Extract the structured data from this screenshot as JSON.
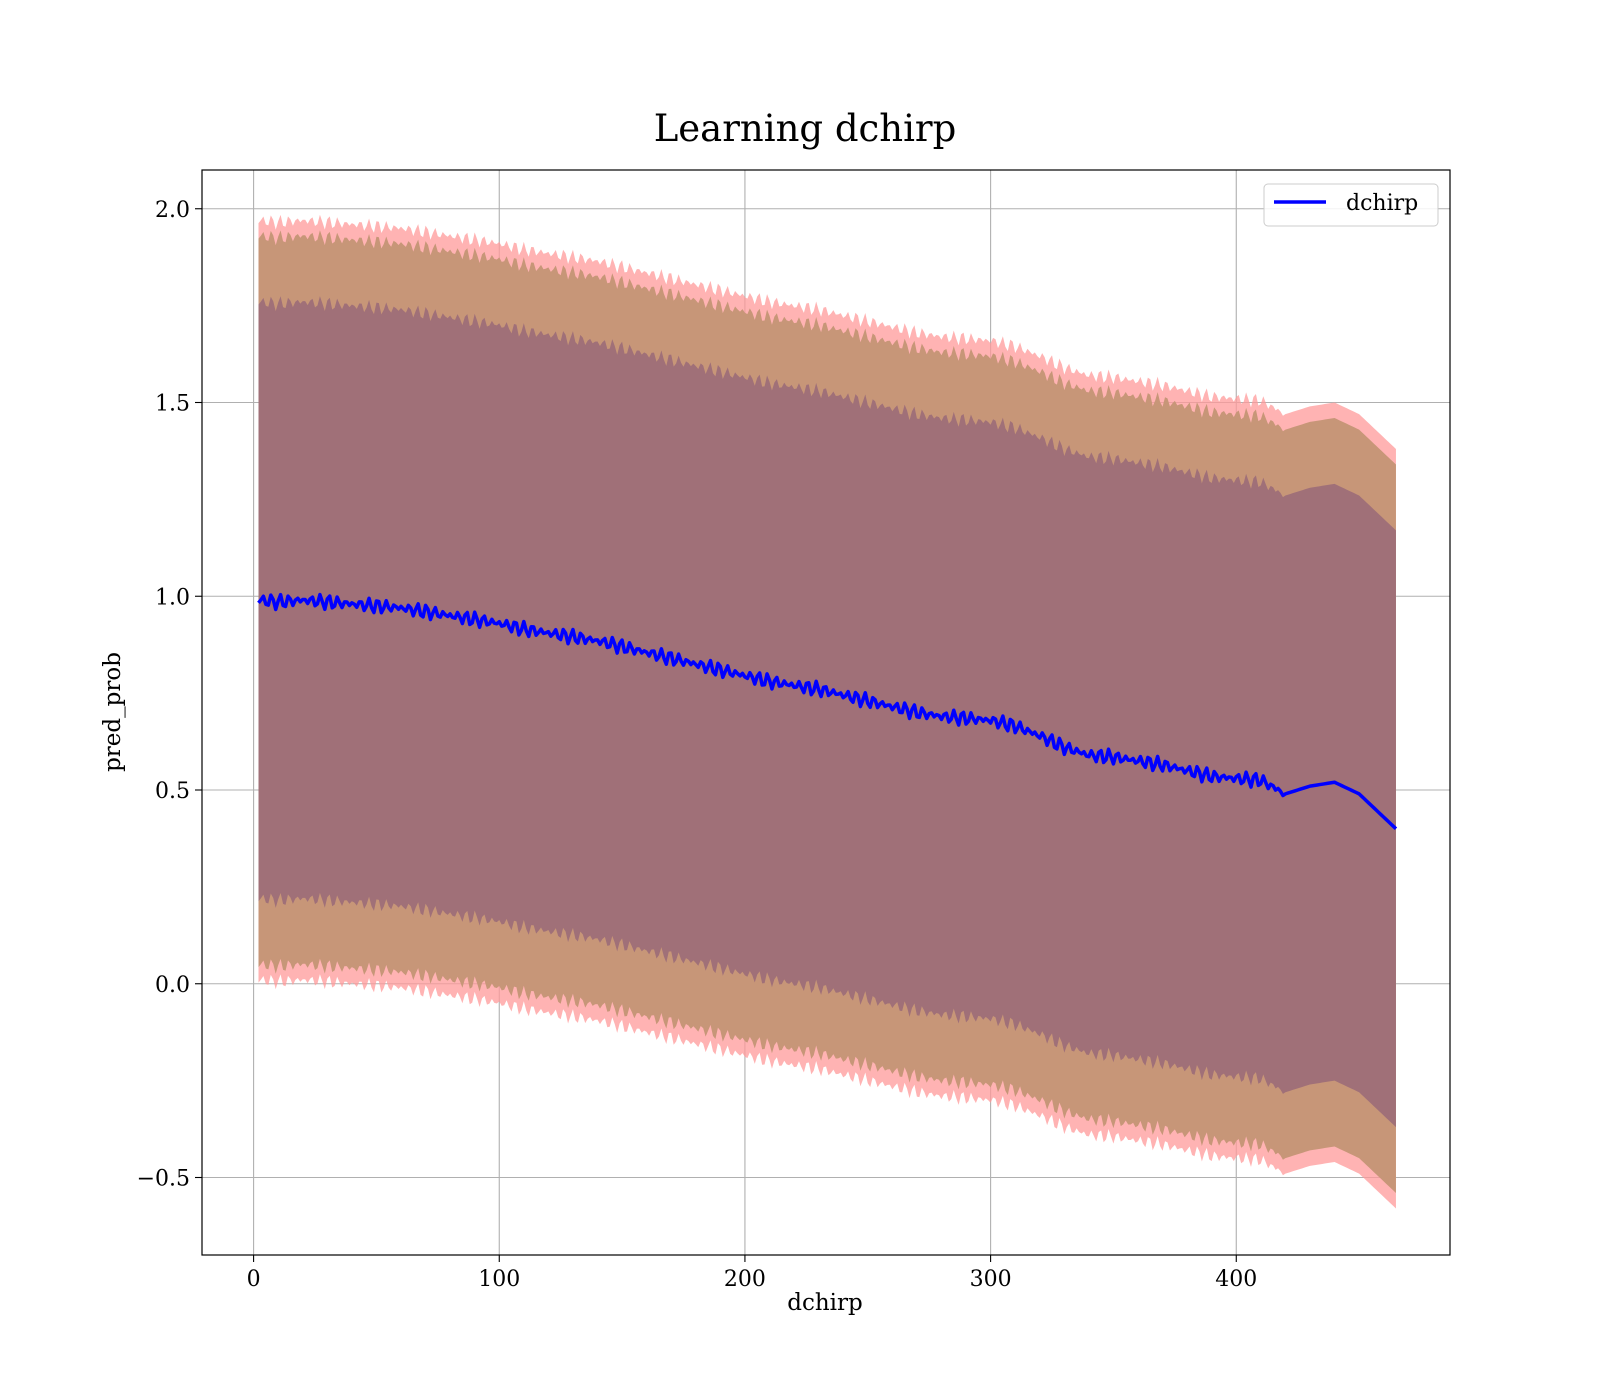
{
  "chart_data": {
    "type": "area",
    "title": "Learning dchirp",
    "xlabel": "dchirp",
    "ylabel": "pred_prob",
    "xlim": [
      -21,
      487
    ],
    "ylim": [
      -0.7,
      2.1
    ],
    "xticks": [
      0,
      100,
      200,
      300,
      400
    ],
    "yticks": [
      -0.5,
      0.0,
      0.5,
      1.0,
      1.5,
      2.0
    ],
    "ytick_labels": [
      "−0.5",
      "0.0",
      "0.5",
      "1.0",
      "1.5",
      "2.0"
    ],
    "grid": true,
    "legend": {
      "position": "top-right",
      "entries": [
        "dchirp"
      ]
    },
    "colors": {
      "line": "#0000ff",
      "band_outer": "#ff9999",
      "band_middle": "#c79678",
      "band_inner": "#a07078"
    },
    "series": [
      {
        "name": "dchirp",
        "x": [
          2,
          10,
          20,
          30,
          40,
          50,
          60,
          70,
          80,
          90,
          100,
          110,
          120,
          130,
          140,
          150,
          160,
          170,
          180,
          190,
          200,
          210,
          220,
          230,
          240,
          250,
          260,
          270,
          280,
          290,
          300,
          310,
          320,
          330,
          340,
          350,
          360,
          370,
          380,
          390,
          400,
          410,
          420,
          430,
          440,
          450,
          465
        ],
        "y": [
          0.99,
          0.985,
          0.99,
          0.985,
          0.98,
          0.975,
          0.97,
          0.96,
          0.95,
          0.94,
          0.93,
          0.915,
          0.905,
          0.895,
          0.885,
          0.87,
          0.855,
          0.84,
          0.825,
          0.81,
          0.795,
          0.78,
          0.77,
          0.76,
          0.745,
          0.73,
          0.715,
          0.7,
          0.69,
          0.685,
          0.68,
          0.665,
          0.64,
          0.61,
          0.59,
          0.585,
          0.575,
          0.565,
          0.55,
          0.535,
          0.53,
          0.525,
          0.49,
          0.51,
          0.52,
          0.49,
          0.4
        ]
      }
    ]
  }
}
